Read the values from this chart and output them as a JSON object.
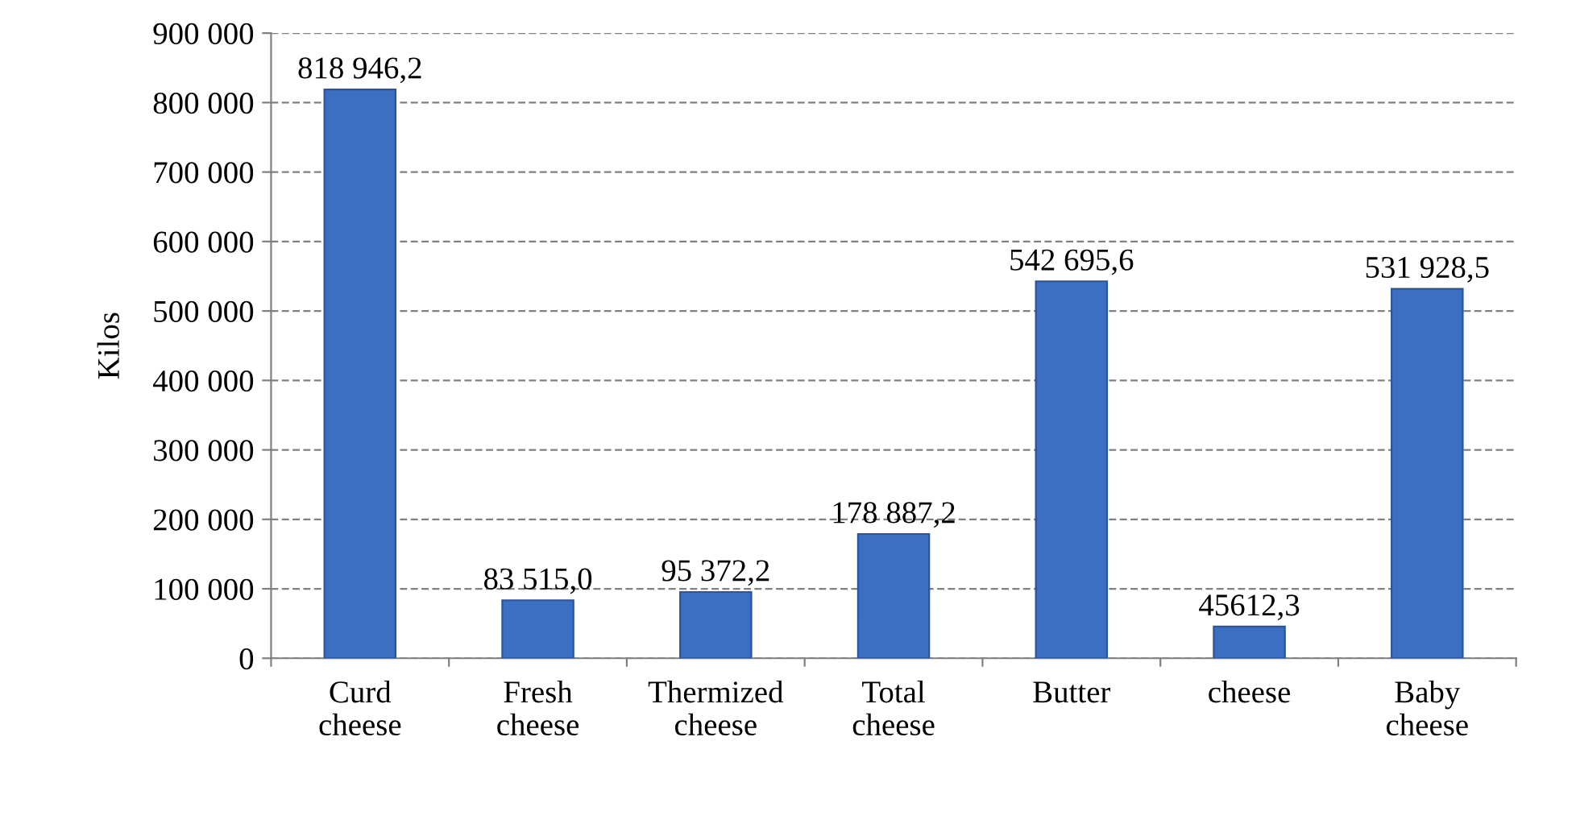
{
  "chart_data": {
    "type": "bar",
    "ylabel": "Kilos",
    "categories": [
      "Curd\ncheese",
      "Fresh\ncheese",
      "Thermized\ncheese",
      "Total\ncheese",
      "Butter",
      "cheese",
      "Baby\ncheese"
    ],
    "values": [
      818946.2,
      83515.0,
      95372.2,
      178887.2,
      542695.6,
      45612.3,
      531928.5
    ],
    "value_labels": [
      "818 946,2",
      "83 515,0",
      "95 372,2",
      "178 887,2",
      "542 695,6",
      "45612,3",
      "531 928,5"
    ],
    "color": "#3b6fc1",
    "ylim": [
      0,
      900000
    ],
    "yticks": [
      0,
      {
        "value": 100000,
        "label": "100 000"
      },
      {
        "value": 200000,
        "label": "200 000"
      },
      {
        "value": 300000,
        "label": "300 000"
      },
      {
        "value": 400000,
        "label": "400 000"
      },
      {
        "value": 500000,
        "label": "500 000"
      },
      {
        "value": 600000,
        "label": "600 000"
      },
      {
        "value": 700000,
        "label": "700 000"
      },
      {
        "value": 800000,
        "label": "800 000"
      },
      {
        "value": 900000,
        "label": "900 000"
      }
    ],
    "grid": "y",
    "legend": false
  }
}
